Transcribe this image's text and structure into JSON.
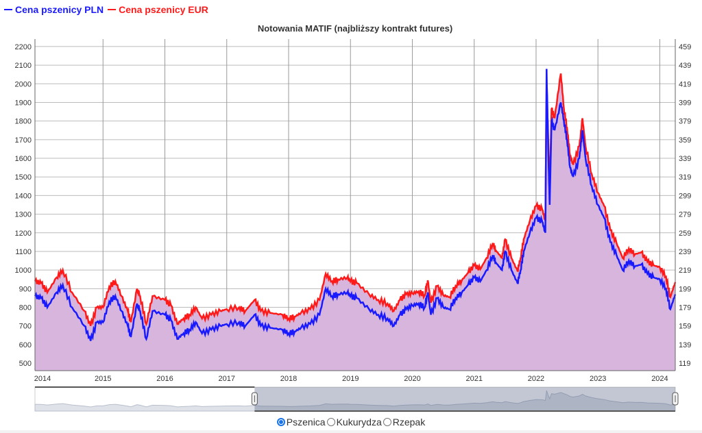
{
  "legend": [
    {
      "label": "Cena pszenicy PLN",
      "color": "#1a1aff"
    },
    {
      "label": "Cena pszenicy EUR",
      "color": "#ff1a1a"
    }
  ],
  "radios": [
    {
      "label": "Pszenica",
      "checked": true
    },
    {
      "label": "Kukurydza",
      "checked": false
    },
    {
      "label": "Rzepak",
      "checked": false
    }
  ],
  "chart_data": {
    "type": "line",
    "title": "Notowania MATIF (najbliższy kontrakt futures)",
    "x_ticks": [
      "2014",
      "2015",
      "2016",
      "2017",
      "2018",
      "2019",
      "2020",
      "2021",
      "2022",
      "2023",
      "2024"
    ],
    "x_tick_values": [
      2014,
      2015,
      2016,
      2017,
      2018,
      2019,
      2020,
      2021,
      2022,
      2023,
      2024
    ],
    "xlim": [
      2013.9,
      2024.25
    ],
    "y_left": {
      "ticks": [
        500,
        600,
        700,
        800,
        900,
        1000,
        1100,
        1200,
        1300,
        1400,
        1500,
        1600,
        1700,
        1800,
        1900,
        2000,
        2100,
        2200
      ],
      "lim": [
        460,
        2240
      ]
    },
    "y_right": {
      "ticks": [
        119,
        139,
        159,
        179,
        199,
        219,
        239,
        259,
        279,
        299,
        319,
        339,
        359,
        379,
        399,
        419,
        439,
        459
      ],
      "lim": [
        111,
        467
      ]
    },
    "grid": true,
    "legend_position": "top-left",
    "x": [
      2013.9,
      2014.0,
      2014.1,
      2014.25,
      2014.35,
      2014.5,
      2014.7,
      2014.8,
      2014.9,
      2015.0,
      2015.1,
      2015.2,
      2015.3,
      2015.4,
      2015.45,
      2015.55,
      2015.6,
      2015.7,
      2015.8,
      2016.0,
      2016.1,
      2016.2,
      2016.3,
      2016.4,
      2016.5,
      2016.6,
      2016.75,
      2016.9,
      2017.0,
      2017.2,
      2017.3,
      2017.45,
      2017.55,
      2017.7,
      2017.9,
      2018.0,
      2018.1,
      2018.2,
      2018.35,
      2018.5,
      2018.6,
      2018.7,
      2018.8,
      2018.95,
      2019.0,
      2019.1,
      2019.3,
      2019.45,
      2019.6,
      2019.7,
      2019.8,
      2019.9,
      2020.0,
      2020.1,
      2020.2,
      2020.25,
      2020.3,
      2020.4,
      2020.5,
      2020.6,
      2020.7,
      2020.8,
      2020.9,
      2021.0,
      2021.1,
      2021.2,
      2021.3,
      2021.35,
      2021.45,
      2021.5,
      2021.6,
      2021.7,
      2021.75,
      2021.8,
      2021.9,
      2022.0,
      2022.1,
      2022.15,
      2022.17,
      2022.2,
      2022.22,
      2022.25,
      2022.3,
      2022.4,
      2022.45,
      2022.5,
      2022.55,
      2022.6,
      2022.7,
      2022.75,
      2022.8,
      2022.9,
      2023.0,
      2023.1,
      2023.2,
      2023.3,
      2023.4,
      2023.5,
      2023.6,
      2023.7,
      2023.8,
      2023.9,
      2024.0,
      2024.1,
      2024.17,
      2024.25
    ],
    "series": [
      {
        "name": "Cena pszenicy PLN",
        "axis": "left",
        "color": "#1a1aff",
        "values": [
          860,
          850,
          800,
          880,
          920,
          800,
          700,
          620,
          720,
          720,
          830,
          860,
          780,
          700,
          640,
          820,
          780,
          630,
          780,
          760,
          730,
          630,
          660,
          680,
          720,
          660,
          680,
          700,
          710,
          720,
          700,
          760,
          700,
          690,
          680,
          660,
          670,
          690,
          710,
          760,
          900,
          860,
          870,
          880,
          860,
          850,
          790,
          760,
          740,
          700,
          760,
          790,
          810,
          820,
          800,
          880,
          760,
          850,
          800,
          790,
          850,
          880,
          920,
          960,
          940,
          1000,
          1080,
          1040,
          1000,
          1100,
          1000,
          930,
          1000,
          1100,
          1200,
          1280,
          1260,
          1200,
          2080,
          1600,
          1350,
          1800,
          1750,
          1900,
          1800,
          1700,
          1550,
          1500,
          1600,
          1750,
          1600,
          1450,
          1350,
          1280,
          1150,
          1080,
          1000,
          1050,
          1020,
          1030,
          980,
          960,
          950,
          900,
          790,
          870
        ]
      },
      {
        "name": "Cena pszenicy EUR",
        "axis": "right",
        "color": "#ff1a1a",
        "values": [
          207,
          205,
          195,
          211,
          219,
          195,
          175,
          159,
          179,
          179,
          201,
          207,
          191,
          175,
          163,
          199,
          191,
          161,
          191,
          187,
          181,
          161,
          167,
          171,
          179,
          167,
          171,
          175,
          177,
          179,
          175,
          187,
          175,
          173,
          171,
          167,
          169,
          173,
          177,
          187,
          215,
          207,
          209,
          211,
          207,
          205,
          193,
          187,
          183,
          175,
          187,
          193,
          194,
          196,
          192,
          208,
          184,
          202,
          192,
          190,
          202,
          208,
          216,
          224,
          220,
          232,
          248,
          240,
          232,
          252,
          232,
          218,
          232,
          252,
          272,
          288,
          284,
          272,
          420,
          352,
          302,
          392,
          382,
          430,
          392,
          372,
          342,
          332,
          352,
          382,
          352,
          322,
          302,
          288,
          262,
          248,
          232,
          242,
          236,
          238,
          228,
          224,
          222,
          212,
          190,
          206
        ]
      }
    ],
    "navigator": {
      "selected_range": [
        2017.45,
        2024.25
      ]
    }
  }
}
